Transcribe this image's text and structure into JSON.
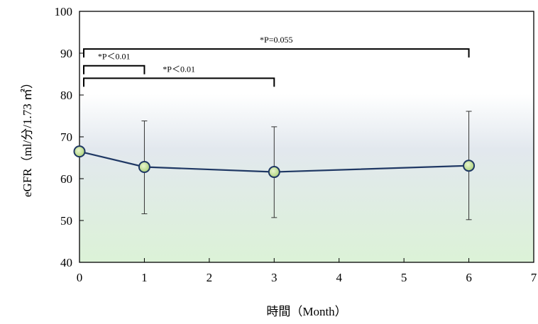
{
  "chart_data": {
    "type": "line",
    "xlabel": "時間（Month）",
    "ylabel": "eGFR（ml/分/1.73 ㎡）",
    "xlim": [
      0,
      7
    ],
    "ylim": [
      40,
      100
    ],
    "x_ticks": [
      0,
      1,
      2,
      3,
      4,
      5,
      6,
      7
    ],
    "y_ticks": [
      40,
      50,
      60,
      70,
      80,
      90,
      100
    ],
    "grid": false,
    "legend": "none",
    "series": [
      {
        "x": [
          0,
          1,
          3,
          6
        ],
        "y": [
          66.5,
          62.8,
          61.6,
          63.1
        ],
        "error_upper": [
          null,
          73.8,
          72.4,
          76.1
        ],
        "error_lower": [
          null,
          51.6,
          50.7,
          50.2
        ]
      }
    ],
    "annotations": [
      {
        "label": "*P＜0.01",
        "from": 0,
        "to": 1,
        "y": 87
      },
      {
        "label": "*P＜0.01",
        "from": 0,
        "to": 3,
        "y": 84
      },
      {
        "label": "*P=0.055",
        "from": 0,
        "to": 6,
        "y": 91
      }
    ],
    "colors": {
      "line": "#1f3864",
      "marker_fill_center": "#e9f5cf",
      "marker_fill_edge": "#a8cf74",
      "background_top": "#ffffff",
      "background_mid": "#e2e8ee",
      "background_bottom": "#dcf2d7"
    }
  }
}
